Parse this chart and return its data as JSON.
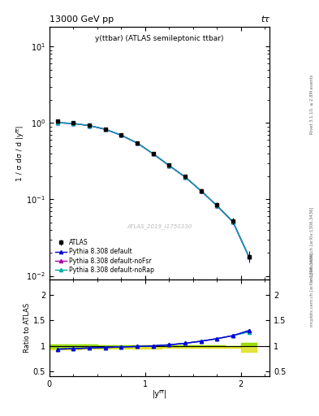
{
  "title_left": "13000 GeV pp",
  "title_right": "tτ",
  "main_ylabel": "1 / σ dσ / d |yᵗᵗ̅|",
  "ratio_ylabel": "Ratio to ATLAS",
  "xlabel": "|yᵗᵗ̅|",
  "annotation": "y(ttbar) (ATLAS semileptonic ttbar)",
  "watermark": "ATLAS_2019_I1750330",
  "right_label_top": "Rivet 3.1.10, ≥ 2.8M events",
  "right_label_bot": "mcplots.cern.ch [arXiv:1306.3436]",
  "atlas_x": [
    0.083,
    0.25,
    0.417,
    0.583,
    0.75,
    0.917,
    1.083,
    1.25,
    1.417,
    1.583,
    1.75,
    1.917,
    2.083
  ],
  "atlas_y": [
    1.05,
    1.01,
    0.94,
    0.84,
    0.7,
    0.55,
    0.4,
    0.28,
    0.2,
    0.13,
    0.085,
    0.052,
    0.018
  ],
  "atlas_yerr_lo": [
    0.04,
    0.03,
    0.03,
    0.03,
    0.03,
    0.025,
    0.02,
    0.015,
    0.012,
    0.009,
    0.007,
    0.005,
    0.003
  ],
  "atlas_yerr_hi": [
    0.04,
    0.03,
    0.03,
    0.03,
    0.03,
    0.025,
    0.02,
    0.015,
    0.012,
    0.009,
    0.007,
    0.005,
    0.003
  ],
  "py_x": [
    0.083,
    0.25,
    0.417,
    0.583,
    0.75,
    0.917,
    1.083,
    1.25,
    1.417,
    1.583,
    1.75,
    1.917,
    2.083
  ],
  "py_default_y": [
    1.01,
    0.985,
    0.925,
    0.828,
    0.692,
    0.547,
    0.396,
    0.278,
    0.197,
    0.13,
    0.083,
    0.051,
    0.018
  ],
  "py_noFsr_y": [
    1.01,
    0.985,
    0.925,
    0.828,
    0.692,
    0.547,
    0.396,
    0.278,
    0.197,
    0.13,
    0.083,
    0.051,
    0.018
  ],
  "py_noRap_y": [
    1.01,
    0.985,
    0.925,
    0.828,
    0.692,
    0.547,
    0.396,
    0.278,
    0.197,
    0.13,
    0.083,
    0.051,
    0.018
  ],
  "ratio_x": [
    0.083,
    0.25,
    0.417,
    0.583,
    0.75,
    0.917,
    1.083,
    1.25,
    1.417,
    1.583,
    1.75,
    1.917,
    2.083
  ],
  "ratio_default": [
    0.935,
    0.945,
    0.958,
    0.968,
    0.978,
    0.988,
    1.0,
    1.02,
    1.05,
    1.09,
    1.14,
    1.2,
    1.3
  ],
  "ratio_noFsr": [
    0.935,
    0.945,
    0.958,
    0.968,
    0.978,
    0.988,
    1.0,
    1.02,
    1.05,
    1.09,
    1.14,
    1.2,
    1.29
  ],
  "ratio_noRap": [
    0.935,
    0.945,
    0.958,
    0.968,
    0.978,
    0.988,
    1.0,
    1.02,
    1.05,
    1.09,
    1.14,
    1.2,
    1.27
  ],
  "band_edges": [
    0.0,
    0.167,
    0.333,
    0.5,
    0.667,
    0.833,
    1.0,
    1.167,
    1.333,
    1.5,
    1.667,
    1.833,
    2.0,
    2.167
  ],
  "band_green_lo": [
    0.97,
    0.975,
    0.98,
    0.983,
    0.985,
    0.988,
    0.99,
    0.992,
    0.994,
    0.996,
    0.997,
    0.998,
    1.0,
    1.0
  ],
  "band_green_hi": [
    1.03,
    1.025,
    1.02,
    1.017,
    1.015,
    1.012,
    1.01,
    1.008,
    1.006,
    1.004,
    1.003,
    1.002,
    1.05,
    1.12
  ],
  "band_yellow_lo": [
    0.93,
    0.935,
    0.94,
    0.943,
    0.946,
    0.949,
    0.952,
    0.955,
    0.958,
    0.96,
    0.962,
    0.963,
    0.88,
    0.875
  ],
  "band_yellow_hi": [
    1.03,
    1.025,
    1.02,
    1.017,
    1.015,
    1.012,
    1.01,
    1.008,
    1.006,
    1.004,
    1.003,
    1.002,
    1.05,
    1.12
  ],
  "color_default": "#0000dd",
  "color_noFsr": "#aa00aa",
  "color_noRap": "#00aaaa",
  "color_atlas": "#000000",
  "color_green_band": "#88dd00",
  "color_yellow_band": "#dddd00",
  "main_ylim_lo": 0.009,
  "main_ylim_hi": 18.0,
  "ratio_ylim_lo": 0.4,
  "ratio_ylim_hi": 2.3,
  "xlim_lo": 0.0,
  "xlim_hi": 2.3
}
